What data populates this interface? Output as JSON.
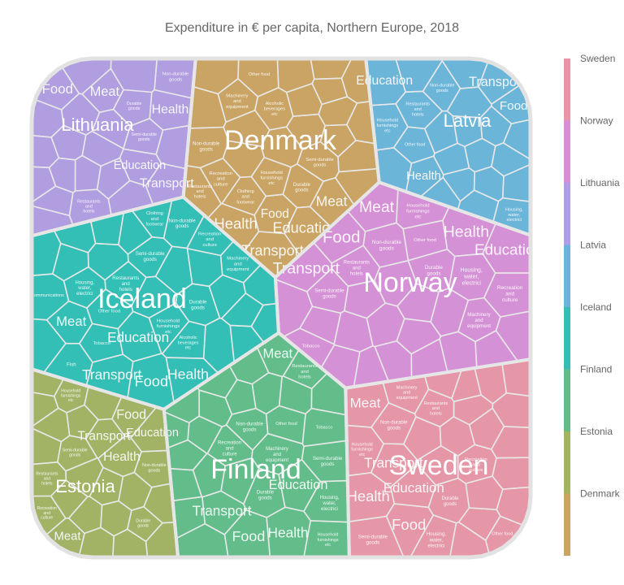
{
  "chart_data": {
    "type": "voronoi-treemap",
    "title": "Expenditure in € per capita, Northern Europe, 2018",
    "legend_position": "right",
    "colors": {
      "Sweden": "#e597a7",
      "Norway": "#d591d5",
      "Lithuania": "#b09ee0",
      "Latvia": "#6bb5d9",
      "Iceland": "#33bfb6",
      "Finland": "#62bd8a",
      "Estonia": "#a2b366",
      "Denmark": "#c9a464"
    },
    "legend": [
      "Sweden",
      "Norway",
      "Lithuania",
      "Latvia",
      "Iceland",
      "Finland",
      "Estonia",
      "Denmark"
    ],
    "countries": [
      {
        "name": "Denmark",
        "categories": [
          "Health",
          "Education",
          "Transport",
          "Meat",
          "Non-durable goods",
          "Durable goods",
          "Recreation and culture",
          "Machinery and equipment",
          "Semi-durable goods",
          "Food",
          "Household furnishings etc",
          "Clothing and footwear",
          "Alcoholic beverages etc",
          "Other food",
          "Restaurants and hotels"
        ]
      },
      {
        "name": "Latvia",
        "categories": [
          "Transport",
          "Education",
          "Food",
          "Health",
          "Restaurants and hotels",
          "Non-durable goods",
          "Housing, water, electrici",
          "Household furnishings etc",
          "Other food"
        ]
      },
      {
        "name": "Lithuania",
        "categories": [
          "Food",
          "Meat",
          "Health",
          "Transport",
          "Non-durable goods",
          "Education",
          "Durable goods",
          "Semi-durable goods",
          "Restaurants and hotels"
        ]
      },
      {
        "name": "Iceland",
        "categories": [
          "Food",
          "Health",
          "Transport",
          "Education",
          "Meat",
          "Fish",
          "Durable goods",
          "Restaurants and hotels",
          "Housing, water, electrici",
          "Non-durable goods",
          "Semi-durable goods",
          "Recreation and culture",
          "Machinery and equipment",
          "Household furnishings etc",
          "Other food",
          "Tobacco",
          "Clothing and footwear",
          "Alcoholic beverages etc",
          "Communications"
        ]
      },
      {
        "name": "Norway",
        "categories": [
          "Food",
          "Health",
          "Transport",
          "Meat",
          "Education",
          "Housing, water, electrici",
          "Non-durable goods",
          "Recreation and culture",
          "Durable goods",
          "Machinery and equipment",
          "Semi-durable goods",
          "Restaurants and hotels",
          "Other food",
          "Household furnishings etc",
          "Tobacco"
        ]
      },
      {
        "name": "Finland",
        "categories": [
          "Food",
          "Health",
          "Transport",
          "Meat",
          "Education",
          "Housing, water, electrici",
          "Non-durable goods",
          "Durable goods",
          "Semi-durable goods",
          "Recreation and culture",
          "Machinery and equipment",
          "Restaurants and hotels",
          "Other food",
          "Tobacco",
          "Household furnishings etc"
        ]
      },
      {
        "name": "Estonia",
        "categories": [
          "Food",
          "Health",
          "Transport",
          "Meat",
          "Education",
          "Non-durable goods",
          "Semi-durable goods",
          "Durable goods",
          "Restaurants and hotels",
          "Recreation and culture",
          "Household furnishings etc"
        ]
      },
      {
        "name": "Sweden",
        "categories": [
          "Food",
          "Health",
          "Transport",
          "Meat",
          "Education",
          "Housing, water, electrici",
          "Non-durable goods",
          "Semi-durable goods",
          "Durable goods",
          "Recreation and culture",
          "Machinery and equipment",
          "Restaurants and hotels",
          "Other food",
          "Household furnishings etc"
        ]
      }
    ]
  }
}
